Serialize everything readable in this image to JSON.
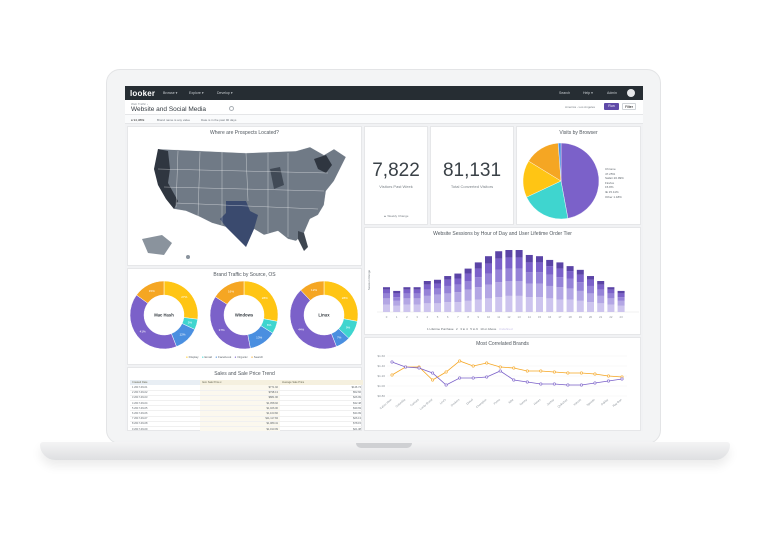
{
  "topbar": {
    "logo": "looker",
    "menus": [
      "Browse ▾",
      "Explore ▾",
      "Develop ▾"
    ],
    "right_items": [
      "Search",
      "Help ▾",
      "Admin"
    ]
  },
  "header": {
    "crumb": "Web Traffic ›",
    "title": "Website and Social Media",
    "timezone_label": "America - Los Angeles",
    "run_label": "Run",
    "filters_label": "Filter"
  },
  "filterbar": {
    "count": "● 94,388k",
    "items": [
      "Brand name is any value",
      "Date is in the past 90 days"
    ]
  },
  "map_tile": {
    "title": "Where are Prospects Located?"
  },
  "kpi1": {
    "value": "7,822",
    "label": "Visitors Past Week",
    "footnote": "▲ Weekly Change"
  },
  "kpi2": {
    "value": "81,131",
    "label": "Total Converted Visitors"
  },
  "browser_tile": {
    "title": "Visits by Browser",
    "legend": [
      "Chrome",
      "47.25%",
      "Safari 20.99%",
      "Firefox",
      "15.8%",
      "IE 15.11%",
      "Other 1.18%"
    ]
  },
  "donut_tile": {
    "title": "Brand Traffic by Source, OS",
    "donuts": [
      "Mac Hash",
      "Windows",
      "Linux"
    ],
    "legend": [
      "Display",
      "Email",
      "Facebook",
      "Organic",
      "Search"
    ]
  },
  "sessions_tile": {
    "title": "Website Sessions by Hour of Day and User Lifetime Order Tier",
    "ylabel": "Session Range",
    "legend": [
      "1 Lifetime Purchase",
      "2",
      "3 to 4",
      "5 to 9",
      "10 or Above",
      "Undefined"
    ]
  },
  "trend_tile": {
    "title": "Sales and Sale Price Trend",
    "headers": [
      "Created Date",
      "Item Sale Price ▾",
      "Average Sale Price"
    ],
    "rows": [
      [
        "1  2017-09-01",
        "$771.92",
        "$146.74"
      ],
      [
        "2  2017-09-02",
        "$798.13",
        "$52.66"
      ],
      [
        "3  2017-09-03",
        "$881.96",
        "$26.99"
      ],
      [
        "4  2017-09-04",
        "$1,058.92",
        "$32.48"
      ],
      [
        "5  2017-09-05",
        "$1,026.00",
        "$39.69"
      ],
      [
        "6  2017-09-06",
        "$1,103.82",
        "$34.99"
      ],
      [
        "7  2017-09-07",
        "$11,117.84",
        "$26.13"
      ],
      [
        "8  2017-09-08",
        "$1,089.41",
        "$78.15"
      ],
      [
        "9  2017-09-09",
        "$1,013.09",
        "$21.38"
      ],
      [
        "10 2017-09-10",
        "$1,033.51",
        "$32.44"
      ]
    ]
  },
  "brands_tile": {
    "title": "Most Correlated Brands",
    "yticks": [
      "$1.60",
      "$1.40",
      "$1.20",
      "$1.00",
      "$0.80"
    ]
  },
  "colors": {
    "purple": "#7b61c9",
    "teal": "#3fd5cf",
    "yellow": "#ffc514",
    "orange": "#f5a623",
    "blue": "#4a8fe0",
    "map_dark": "#2f3640"
  },
  "chart_data": [
    {
      "type": "pie",
      "categories": [
        "Chrome",
        "Safari",
        "Firefox",
        "IE",
        "Other"
      ],
      "values": [
        47.25,
        20.99,
        15.8,
        15.11,
        1.18
      ]
    },
    {
      "type": "bar",
      "categories": [
        "0",
        "1",
        "2",
        "3",
        "4",
        "5",
        "6",
        "7",
        "8",
        "9",
        "10",
        "11",
        "12",
        "13",
        "14",
        "15",
        "16",
        "17",
        "18",
        "19",
        "20",
        "21",
        "22",
        "23"
      ],
      "series": [
        {
          "name": "1 Lifetime Purchase",
          "values": [
            6,
            5,
            6,
            6,
            7,
            7,
            8,
            8,
            9,
            10,
            11,
            12,
            13,
            13,
            12,
            12,
            11,
            10,
            10,
            9,
            8,
            7,
            6,
            5
          ]
        },
        {
          "name": "2",
          "values": [
            5,
            4,
            5,
            5,
            6,
            7,
            7,
            8,
            9,
            10,
            11,
            12,
            12,
            12,
            11,
            11,
            10,
            10,
            9,
            8,
            7,
            6,
            5,
            4
          ]
        },
        {
          "name": "3 to 4",
          "values": [
            4,
            3,
            4,
            4,
            5,
            5,
            6,
            6,
            7,
            8,
            9,
            10,
            10,
            10,
            9,
            9,
            9,
            8,
            8,
            7,
            6,
            5,
            4,
            3
          ]
        },
        {
          "name": "5 to 9",
          "values": [
            3,
            3,
            3,
            3,
            4,
            4,
            5,
            5,
            6,
            7,
            8,
            9,
            9,
            9,
            8,
            8,
            7,
            7,
            6,
            6,
            5,
            4,
            3,
            3
          ]
        },
        {
          "name": "10 or Above",
          "values": [
            2,
            2,
            2,
            2,
            3,
            3,
            3,
            4,
            4,
            5,
            6,
            6,
            6,
            6,
            6,
            5,
            5,
            5,
            4,
            4,
            3,
            3,
            2,
            2
          ]
        }
      ]
    },
    {
      "type": "line",
      "categories": [
        "Calvin Klein",
        "Columbia",
        "Carhartt",
        "Lucky Brand",
        "Levi's",
        "Dockers",
        "Diesel",
        "Champion",
        "Puma",
        "Nike",
        "Tommy",
        "Hanes",
        "Jockey",
        "Quiksilver",
        "Volcom",
        "Speedo",
        "Oakley",
        "Ray-Ban"
      ],
      "ylim": [
        0.8,
        1.6
      ],
      "series": [
        {
          "values": [
            1.22,
            1.38,
            1.38,
            1.12,
            1.28,
            1.5,
            1.4,
            1.46,
            1.38,
            1.36,
            1.3,
            1.3,
            1.28,
            1.26,
            1.26,
            1.24,
            1.2,
            1.18
          ]
        },
        {
          "values": [
            1.48,
            1.38,
            1.36,
            1.26,
            1.02,
            1.16,
            1.16,
            1.18,
            1.3,
            1.12,
            1.08,
            1.04,
            1.04,
            1.02,
            1.02,
            1.06,
            1.1,
            1.14
          ]
        }
      ]
    },
    {
      "type": "pie",
      "title": "Mac Hash",
      "categories": [
        "Display",
        "Email",
        "Facebook",
        "Organic",
        "Search"
      ],
      "values": [
        27,
        5,
        12,
        41,
        15
      ]
    },
    {
      "type": "pie",
      "title": "Windows",
      "categories": [
        "Display",
        "Email",
        "Facebook",
        "Organic",
        "Search"
      ],
      "values": [
        28,
        6,
        13,
        37,
        16
      ]
    },
    {
      "type": "pie",
      "title": "Linux",
      "categories": [
        "Display",
        "Email",
        "Facebook",
        "Organic",
        "Search"
      ],
      "values": [
        28,
        9,
        7,
        44,
        12
      ]
    }
  ]
}
